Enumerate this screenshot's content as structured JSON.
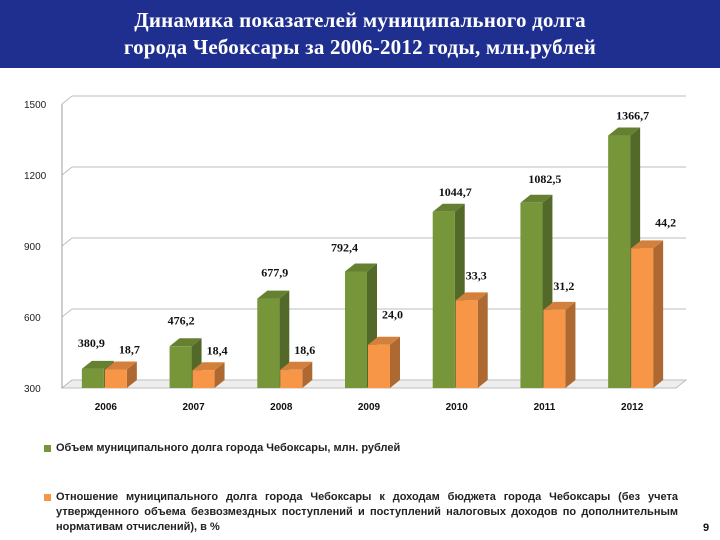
{
  "header": {
    "title_line_1": "Динамика показателей муниципального долга",
    "title_line_2": "города Чебоксары за 2006-2012 годы, млн.рублей"
  },
  "colors": {
    "header_bg": "#1e2f8f",
    "debt_series": "#77963a",
    "ratio_series": "#f79646"
  },
  "chart_data": {
    "type": "bar",
    "title": "",
    "xlabel": "",
    "ylabel": "",
    "categories": [
      "2006",
      "2007",
      "2008",
      "2009",
      "2010",
      "2011",
      "2012"
    ],
    "yticks": [
      "300",
      "600",
      "900",
      "1200",
      "1500"
    ],
    "ylim": [
      300,
      1500
    ],
    "grid": true,
    "series": [
      {
        "name": "Объем муниципального долга города Чебоксары, млн. рублей",
        "values": [
          380.9,
          476.2,
          677.9,
          792.4,
          1044.7,
          1082.5,
          1366.7
        ],
        "labels": [
          "380,9",
          "476,2",
          "677,9",
          "792,4",
          "1044,7",
          "1082,5",
          "1366,7"
        ]
      },
      {
        "name": "Отношение муниципального долга города Чебоксары к доходам бюджета города Чебоксары (без учета утвержденного объема безвозмездных поступлений и поступлений налоговых доходов по дополнительным нормативам отчислений), в %",
        "values": [
          18.7,
          18.4,
          18.6,
          24.0,
          33.3,
          31.2,
          44.2
        ],
        "labels": [
          "18,7",
          "18,4",
          "18,6",
          "24,0",
          "33,3",
          "31,2",
          "44,2"
        ],
        "display_heights_axis_units": [
          378,
          375,
          377,
          483,
          670,
          630,
          890
        ]
      }
    ],
    "legend_position": "bottom"
  },
  "legend": {
    "item_1": "Объем муниципального долга города Чебоксары, млн. рублей",
    "item_2": "Отношение муниципального долга города Чебоксары к доходам бюджета города Чебоксары (без учета утвержденного объема безвозмездных поступлений и поступлений налоговых доходов по дополнительным нормативам отчислений), в %"
  },
  "page_number": "9"
}
